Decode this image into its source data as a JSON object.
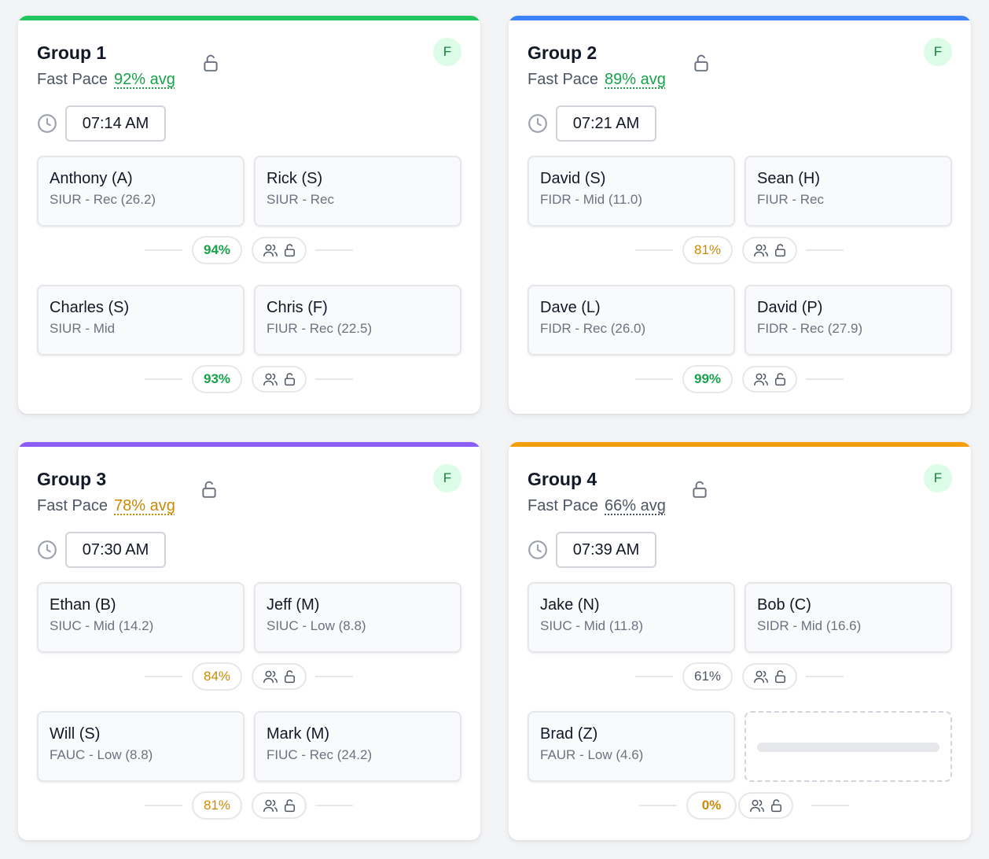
{
  "colors": {
    "green": "#16a34a",
    "amber": "#ca8a04",
    "gray": "#4b5563"
  },
  "groups": [
    {
      "title": "Group 1",
      "pace": "Fast Pace",
      "avg": "92% avg",
      "avg_color": "#16a34a",
      "accent": "#22c55e",
      "badge": "F",
      "time": "07:14 AM",
      "players": [
        {
          "name": "Anthony (A)",
          "detail": "SIUR - Rec (26.2)"
        },
        {
          "name": "Rick (S)",
          "detail": "SIUR - Rec"
        },
        {
          "name": "Charles (S)",
          "detail": "SIUR - Mid"
        },
        {
          "name": "Chris (F)",
          "detail": "FIUR - Rec (22.5)"
        }
      ],
      "pairs": [
        {
          "pct": "94%",
          "color": "#16a34a",
          "bold": true
        },
        {
          "pct": "93%",
          "color": "#16a34a",
          "bold": true
        }
      ]
    },
    {
      "title": "Group 2",
      "pace": "Fast Pace",
      "avg": "89% avg",
      "avg_color": "#16a34a",
      "accent": "#3b82f6",
      "badge": "F",
      "time": "07:21 AM",
      "players": [
        {
          "name": "David (S)",
          "detail": "FIDR - Mid (11.0)"
        },
        {
          "name": "Sean (H)",
          "detail": "FIUR - Rec"
        },
        {
          "name": "Dave (L)",
          "detail": "FIDR - Rec (26.0)"
        },
        {
          "name": "David (P)",
          "detail": "FIDR - Rec (27.9)"
        }
      ],
      "pairs": [
        {
          "pct": "81%",
          "color": "#ca8a04",
          "bold": false
        },
        {
          "pct": "99%",
          "color": "#16a34a",
          "bold": true
        }
      ]
    },
    {
      "title": "Group 3",
      "pace": "Fast Pace",
      "avg": "78% avg",
      "avg_color": "#ca8a04",
      "accent": "#8b5cf6",
      "badge": "F",
      "time": "07:30 AM",
      "players": [
        {
          "name": "Ethan (B)",
          "detail": "SIUC - Mid (14.2)"
        },
        {
          "name": "Jeff (M)",
          "detail": "SIUC - Low (8.8)"
        },
        {
          "name": "Will (S)",
          "detail": "FAUC - Low (8.8)"
        },
        {
          "name": "Mark (M)",
          "detail": "FIUC - Rec (24.2)"
        }
      ],
      "pairs": [
        {
          "pct": "84%",
          "color": "#ca8a04",
          "bold": false
        },
        {
          "pct": "81%",
          "color": "#ca8a04",
          "bold": false
        }
      ]
    },
    {
      "title": "Group 4",
      "pace": "Fast Pace",
      "avg": "66% avg",
      "avg_color": "#4b5563",
      "accent": "#f59e0b",
      "badge": "F",
      "time": "07:39 AM",
      "players": [
        {
          "name": "Jake (N)",
          "detail": "SIUC - Mid (11.8)"
        },
        {
          "name": "Bob (C)",
          "detail": "SIDR - Mid (16.6)"
        },
        {
          "name": "Brad (Z)",
          "detail": "FAUR - Low (4.6)"
        },
        {
          "name": "",
          "detail": "",
          "empty": true
        }
      ],
      "pairs": [
        {
          "pct": "61%",
          "color": "#4b5563",
          "bold": false
        },
        {
          "pct": "0%",
          "color": "#ca8a04",
          "bold": true
        }
      ]
    }
  ]
}
